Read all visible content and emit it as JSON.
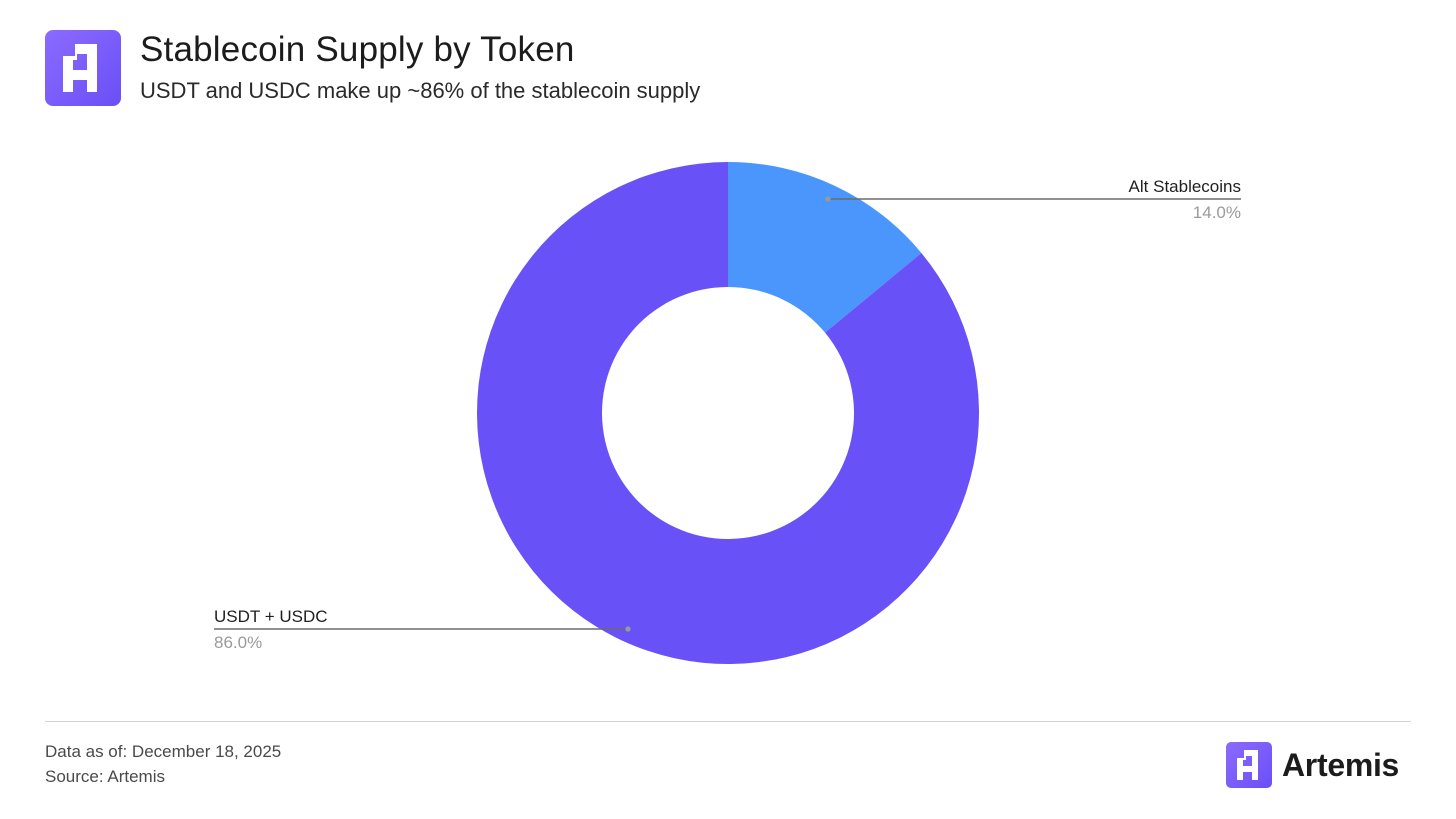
{
  "header": {
    "title": "Stablecoin Supply by Token",
    "subtitle": "USDT and USDC make up ~86% of the stablecoin supply",
    "logo_icon": "artemis-logo-icon"
  },
  "chart_data": {
    "type": "pie",
    "donut": true,
    "categories": [
      "Alt Stablecoins",
      "USDT + USDC"
    ],
    "values": [
      14.0,
      86.0
    ],
    "labels": [
      "14.0%",
      "86.0%"
    ],
    "colors": [
      "#4a96fd",
      "#6951f8"
    ],
    "start": "12 o'clock, clockwise",
    "legend": "none (leader-line labels)"
  },
  "footer": {
    "date_line": "Data as of: December 18, 2025",
    "source_line": "Source: Artemis",
    "brand": "Artemis"
  }
}
